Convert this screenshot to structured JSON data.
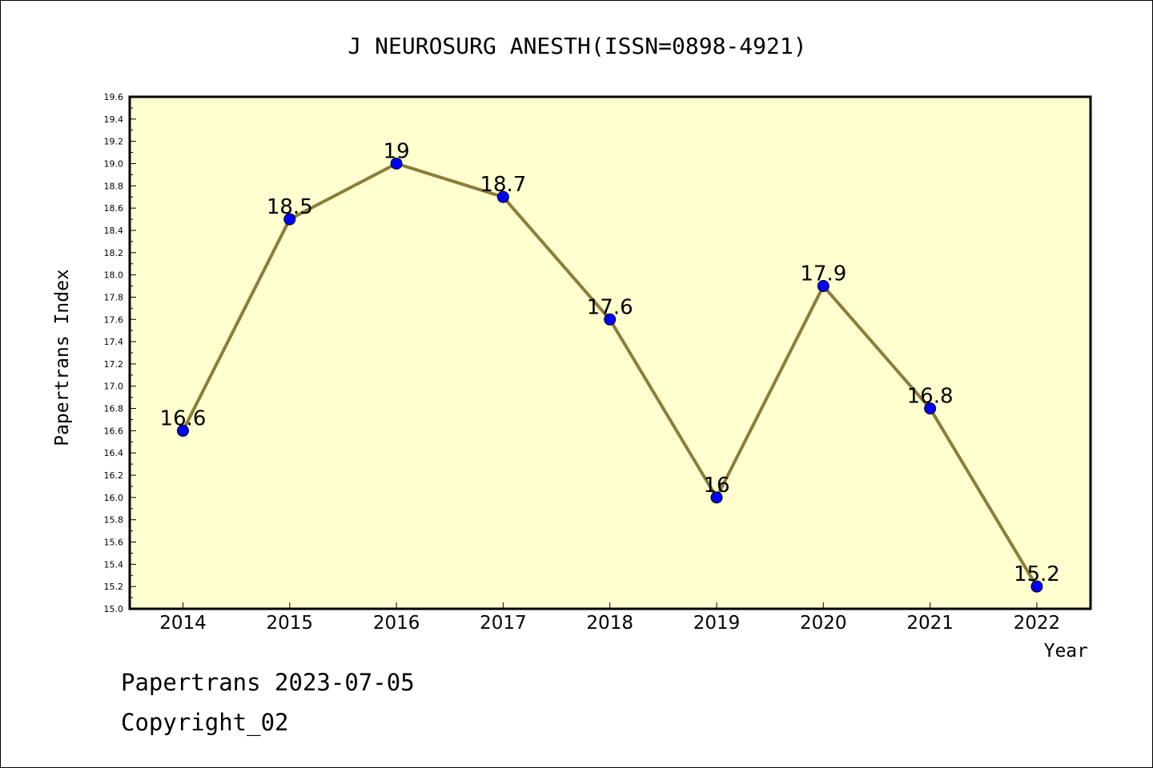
{
  "chart_data": {
    "type": "line",
    "title": "J NEUROSURG ANESTH(ISSN=0898-4921)",
    "xlabel": "Year",
    "ylabel": "Papertrans Index",
    "categories": [
      "2014",
      "2015",
      "2016",
      "2017",
      "2018",
      "2019",
      "2020",
      "2021",
      "2022"
    ],
    "series": [
      {
        "values": [
          16.6,
          18.5,
          19,
          18.7,
          17.6,
          16,
          17.9,
          16.8,
          15.2
        ],
        "labels": [
          "16.6",
          "18.5",
          "19",
          "18.7",
          "17.6",
          "16",
          "17.9",
          "16.8",
          "15.2"
        ]
      }
    ],
    "ylim": [
      15.0,
      19.6
    ],
    "yticks": [
      "15.0",
      "15.2",
      "15.4",
      "15.6",
      "15.8",
      "16.0",
      "16.2",
      "16.4",
      "16.6",
      "16.8",
      "17.0",
      "17.2",
      "17.4",
      "17.6",
      "17.8",
      "18.0",
      "18.2",
      "18.4",
      "18.6",
      "18.8",
      "19.0",
      "19.2",
      "19.4",
      "19.6"
    ],
    "grid": false,
    "colors": {
      "plot_background": "#ffffd0",
      "line": "#8b7d3a",
      "marker": "#0000ff",
      "axes": "#000000"
    }
  },
  "footer": {
    "line1": "Papertrans 2023-07-05",
    "line2": "Copyright_02"
  }
}
